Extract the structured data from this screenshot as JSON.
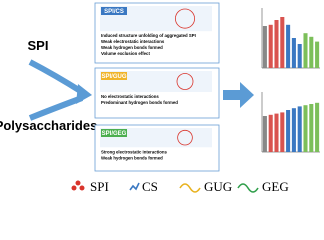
{
  "inputs": [
    "SPI",
    "Polysaccharides"
  ],
  "boxes": [
    {
      "label": "SPI/CS",
      "bullets": [
        "Induced structure unfolding of aggregated SPI",
        "Weak electrostatic interactions",
        "Weak hydrogen bonds formed",
        "Volume exclusion effect"
      ]
    },
    {
      "label": "SPI/GUG",
      "bullets": [
        "No electrostatic interactions",
        "Predominant hydrogen bonds formed"
      ]
    },
    {
      "label": "SPI/GEG",
      "bullets": [
        "Strong electrostatic interactions",
        "Weak hydrogen bonds formed"
      ]
    }
  ],
  "charts": [
    {
      "type": "bar",
      "ylim": [
        0,
        100
      ],
      "values": [
        70,
        72,
        80,
        85,
        72,
        50,
        40,
        58,
        52,
        44
      ],
      "colors": [
        "#888888",
        "#d9534f",
        "#d9534f",
        "#d9534f",
        "#3a78c2",
        "#3a78c2",
        "#3a78c2",
        "#7cbf5a",
        "#7cbf5a",
        "#7cbf5a"
      ]
    },
    {
      "type": "bar",
      "ylim": [
        0,
        100
      ],
      "values": [
        60,
        62,
        64,
        66,
        70,
        73,
        76,
        78,
        80,
        82
      ],
      "colors": [
        "#888888",
        "#d9534f",
        "#d9534f",
        "#d9534f",
        "#3a78c2",
        "#3a78c2",
        "#3a78c2",
        "#7cbf5a",
        "#7cbf5a",
        "#7cbf5a"
      ]
    }
  ],
  "legend": [
    "SPI",
    "CS",
    "GUG",
    "GEG"
  ]
}
